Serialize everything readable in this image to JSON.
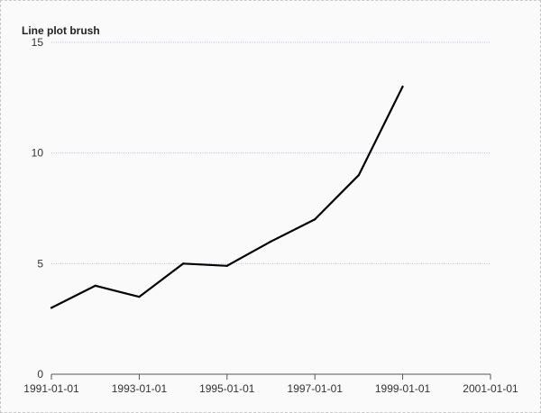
{
  "chart_data": {
    "type": "line",
    "title": "Line plot brush",
    "xlabel": "",
    "ylabel": "",
    "x_axis_kind": "date",
    "xlim": [
      "1991-01-01",
      "2001-01-01"
    ],
    "ylim": [
      0,
      15
    ],
    "x_ticks": [
      "1991-01-01",
      "1993-01-01",
      "1995-01-01",
      "1997-01-01",
      "1999-01-01",
      "2001-01-01"
    ],
    "y_ticks": [
      0,
      5,
      10,
      15
    ],
    "grid": "horizontal",
    "legend": "none",
    "series": [
      {
        "color": "#000000",
        "points": [
          {
            "x": "1991-01-01",
            "y": 3
          },
          {
            "x": "1992-01-01",
            "y": 4
          },
          {
            "x": "1993-01-01",
            "y": 3.5
          },
          {
            "x": "1994-01-01",
            "y": 5
          },
          {
            "x": "1995-01-01",
            "y": 4.9
          },
          {
            "x": "1996-01-01",
            "y": 6
          },
          {
            "x": "1997-01-01",
            "y": 7
          },
          {
            "x": "1998-01-01",
            "y": 9
          },
          {
            "x": "1999-01-01",
            "y": 13
          }
        ]
      }
    ]
  }
}
